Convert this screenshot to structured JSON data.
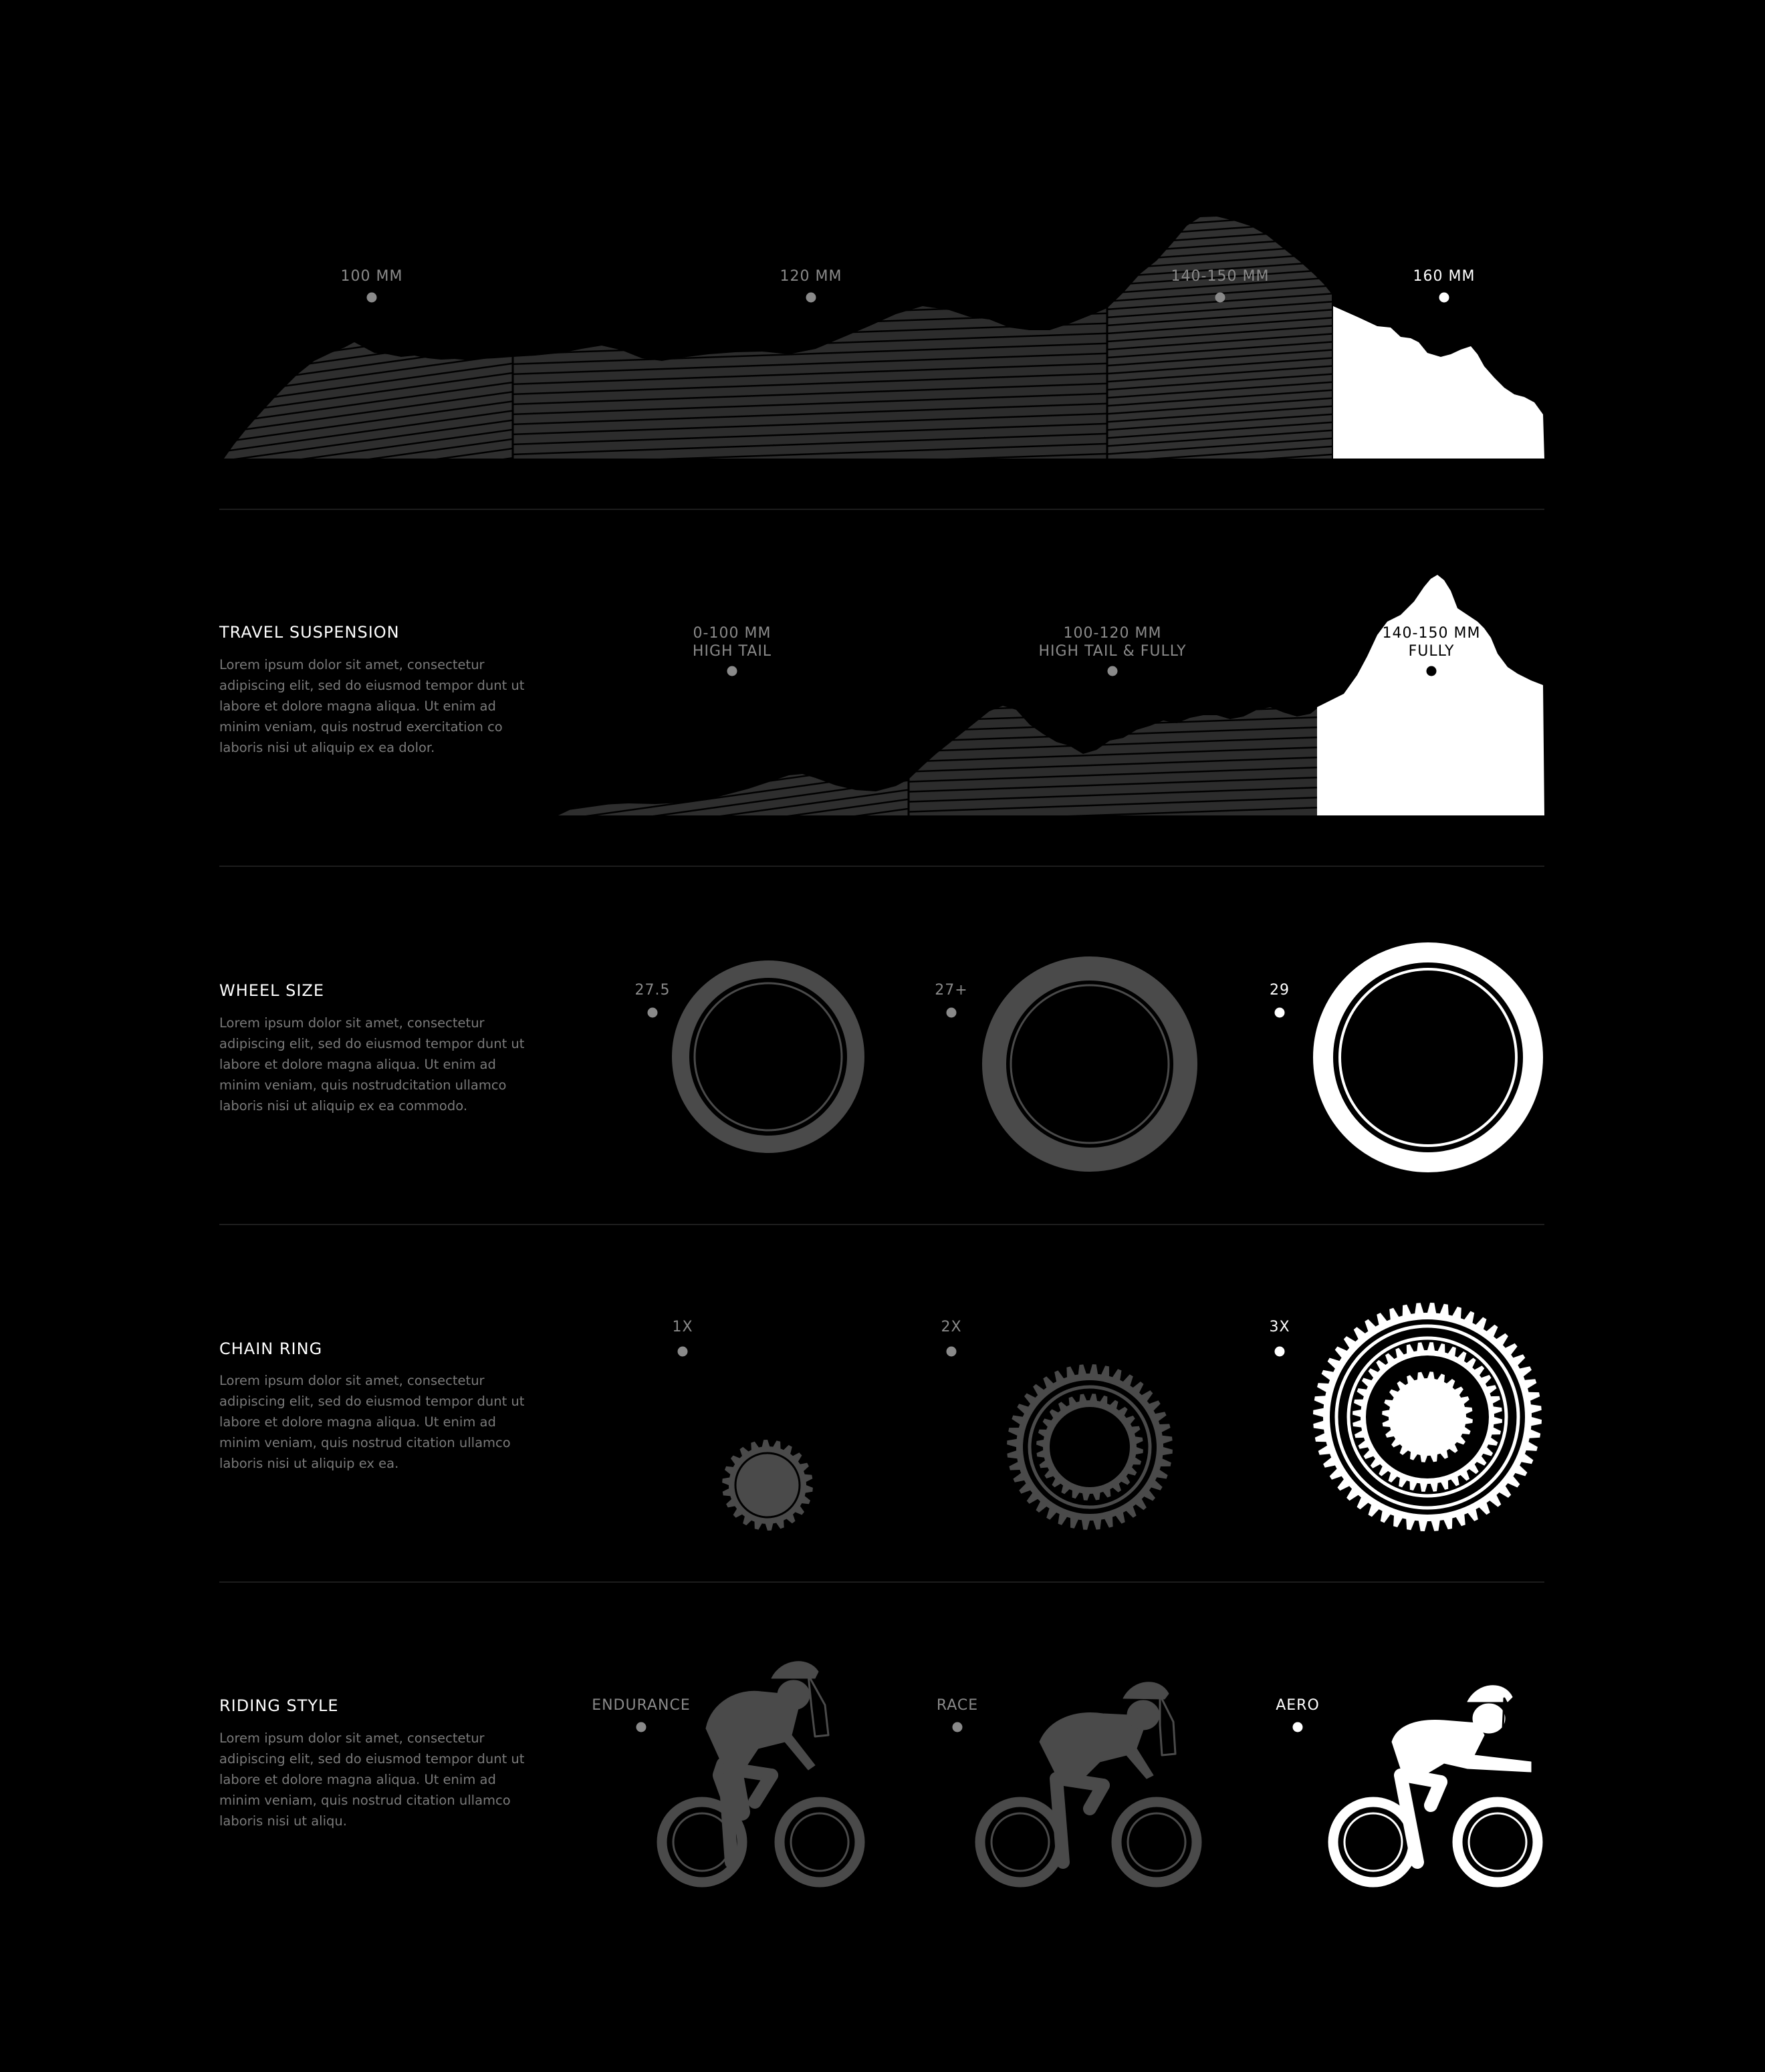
{
  "colors": {
    "background": "#000000",
    "grey_option": "#4a4a4a",
    "selected_option": "#ffffff",
    "label_grey": "#8a8a8a",
    "text_grey": "#7a7a7a"
  },
  "top_profile": {
    "labels": [
      {
        "text": "100 MM",
        "active": false
      },
      {
        "text": "120 MM",
        "active": false
      },
      {
        "text": "140-150 MM",
        "active": false
      },
      {
        "text": "160 MM",
        "active": true
      }
    ]
  },
  "travel_suspension": {
    "title": "TRAVEL SUSPENSION",
    "description": "Lorem ipsum dolor sit amet, consectetur adipiscing elit, sed do eiusmod tempor dunt ut labore et dolore magna aliqua. Ut enim ad minim veniam, quis nostrud exercitation co laboris nisi ut aliquip ex ea dolor.",
    "options": [
      {
        "line1": "0-100 MM",
        "line2": "HIGH TAIL",
        "active": false
      },
      {
        "line1": "100-120 MM",
        "line2": "HIGH TAIL & FULLY",
        "active": false
      },
      {
        "line1": "140-150 MM",
        "line2": "FULLY",
        "active": true
      }
    ]
  },
  "wheel_size": {
    "title": "WHEEL SIZE",
    "description": "Lorem ipsum dolor sit amet, consectetur adipiscing elit, sed do eiusmod tempor dunt ut labore et dolore magna aliqua. Ut enim ad minim veniam, quis nostrudcitation ullamco laboris nisi ut aliquip ex ea commodo.",
    "options": [
      {
        "label": "27.5",
        "active": false
      },
      {
        "label": "27+",
        "active": false
      },
      {
        "label": "29",
        "active": true
      }
    ]
  },
  "chain_ring": {
    "title": "CHAIN RING",
    "description": "Lorem ipsum dolor sit amet, consectetur adipiscing elit, sed do eiusmod tempor dunt ut labore et dolore magna aliqua. Ut enim ad minim veniam, quis nostrud citation ullamco laboris nisi ut aliquip ex ea.",
    "options": [
      {
        "label": "1X",
        "active": false
      },
      {
        "label": "2X",
        "active": false
      },
      {
        "label": "3X",
        "active": true
      }
    ]
  },
  "riding_style": {
    "title": "RIDING STYLE",
    "description": "Lorem ipsum dolor sit amet, consectetur adipiscing elit, sed do eiusmod tempor dunt ut labore et dolore magna aliqua. Ut enim ad minim veniam, quis nostrud citation ullamco laboris nisi ut aliqu.",
    "options": [
      {
        "label": "ENDURANCE",
        "active": false
      },
      {
        "label": "RACE",
        "active": false
      },
      {
        "label": "AERO",
        "active": true
      }
    ]
  }
}
